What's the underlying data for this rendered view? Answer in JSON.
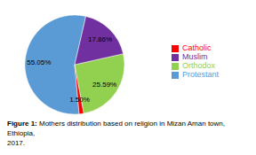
{
  "chart_data": {
    "type": "pie",
    "categories": [
      "Protestant",
      "Catholic",
      "Orthodox",
      "Muslim"
    ],
    "values": [
      55.05,
      1.5,
      25.59,
      17.86
    ],
    "value_labels": [
      "55.05%",
      "1.50%",
      "25.59%",
      "17.86%"
    ],
    "colors": [
      "#5B9BD5",
      "#FF0000",
      "#92D050",
      "#7030A0"
    ],
    "data_labels": true,
    "legend": "right",
    "caption_bold": "Figure 1:",
    "caption": " Mothers distribution based on religion in Mizan Aman town, Ethiopia,\n2017."
  }
}
